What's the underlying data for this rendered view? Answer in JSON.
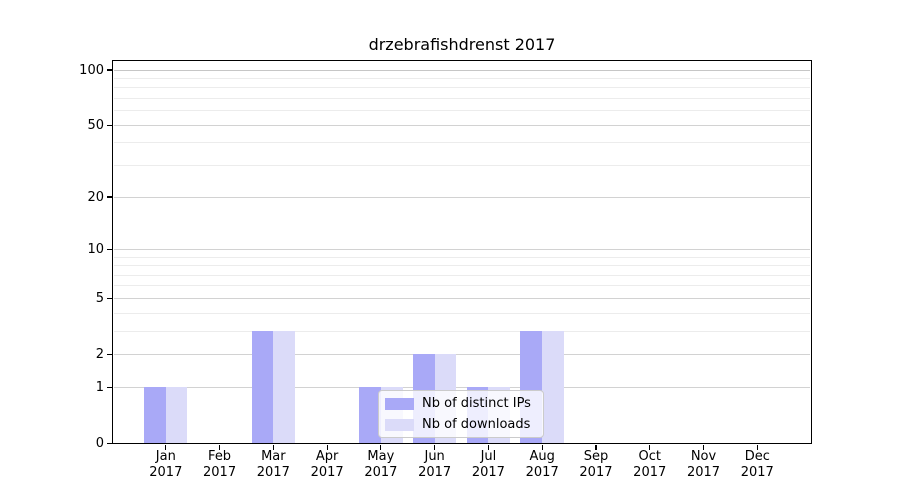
{
  "chart_data": {
    "type": "bar",
    "title": "drzebrafishdrenst 2017",
    "categories": [
      "Jan",
      "Feb",
      "Mar",
      "Apr",
      "May",
      "Jun",
      "Jul",
      "Aug",
      "Sep",
      "Oct",
      "Nov",
      "Dec"
    ],
    "year_label": "2017",
    "series": [
      {
        "name": "Nb of distinct IPs",
        "color": "#a9a9f7",
        "values": [
          1,
          0,
          3,
          0,
          1,
          2,
          1,
          3,
          0,
          0,
          0,
          0
        ]
      },
      {
        "name": "Nb of downloads",
        "color": "#dbdbf9",
        "values": [
          1,
          0,
          3,
          0,
          1,
          2,
          1,
          3,
          0,
          0,
          0,
          0
        ]
      }
    ],
    "y_axis": {
      "scale": "log10(1+y)",
      "ticks": [
        100,
        50,
        20,
        10,
        5,
        2,
        1,
        0
      ],
      "minor_gridlines": [
        3,
        4,
        6,
        7,
        8,
        9,
        30,
        40,
        60,
        70,
        80,
        90
      ],
      "ylim": [
        0,
        112
      ]
    },
    "legend_position": "lower center",
    "grid": true,
    "colors": {
      "grid_major": "#d2d2d2",
      "grid_minor": "#ececec",
      "spine": "#000000",
      "text": "#000000"
    }
  }
}
